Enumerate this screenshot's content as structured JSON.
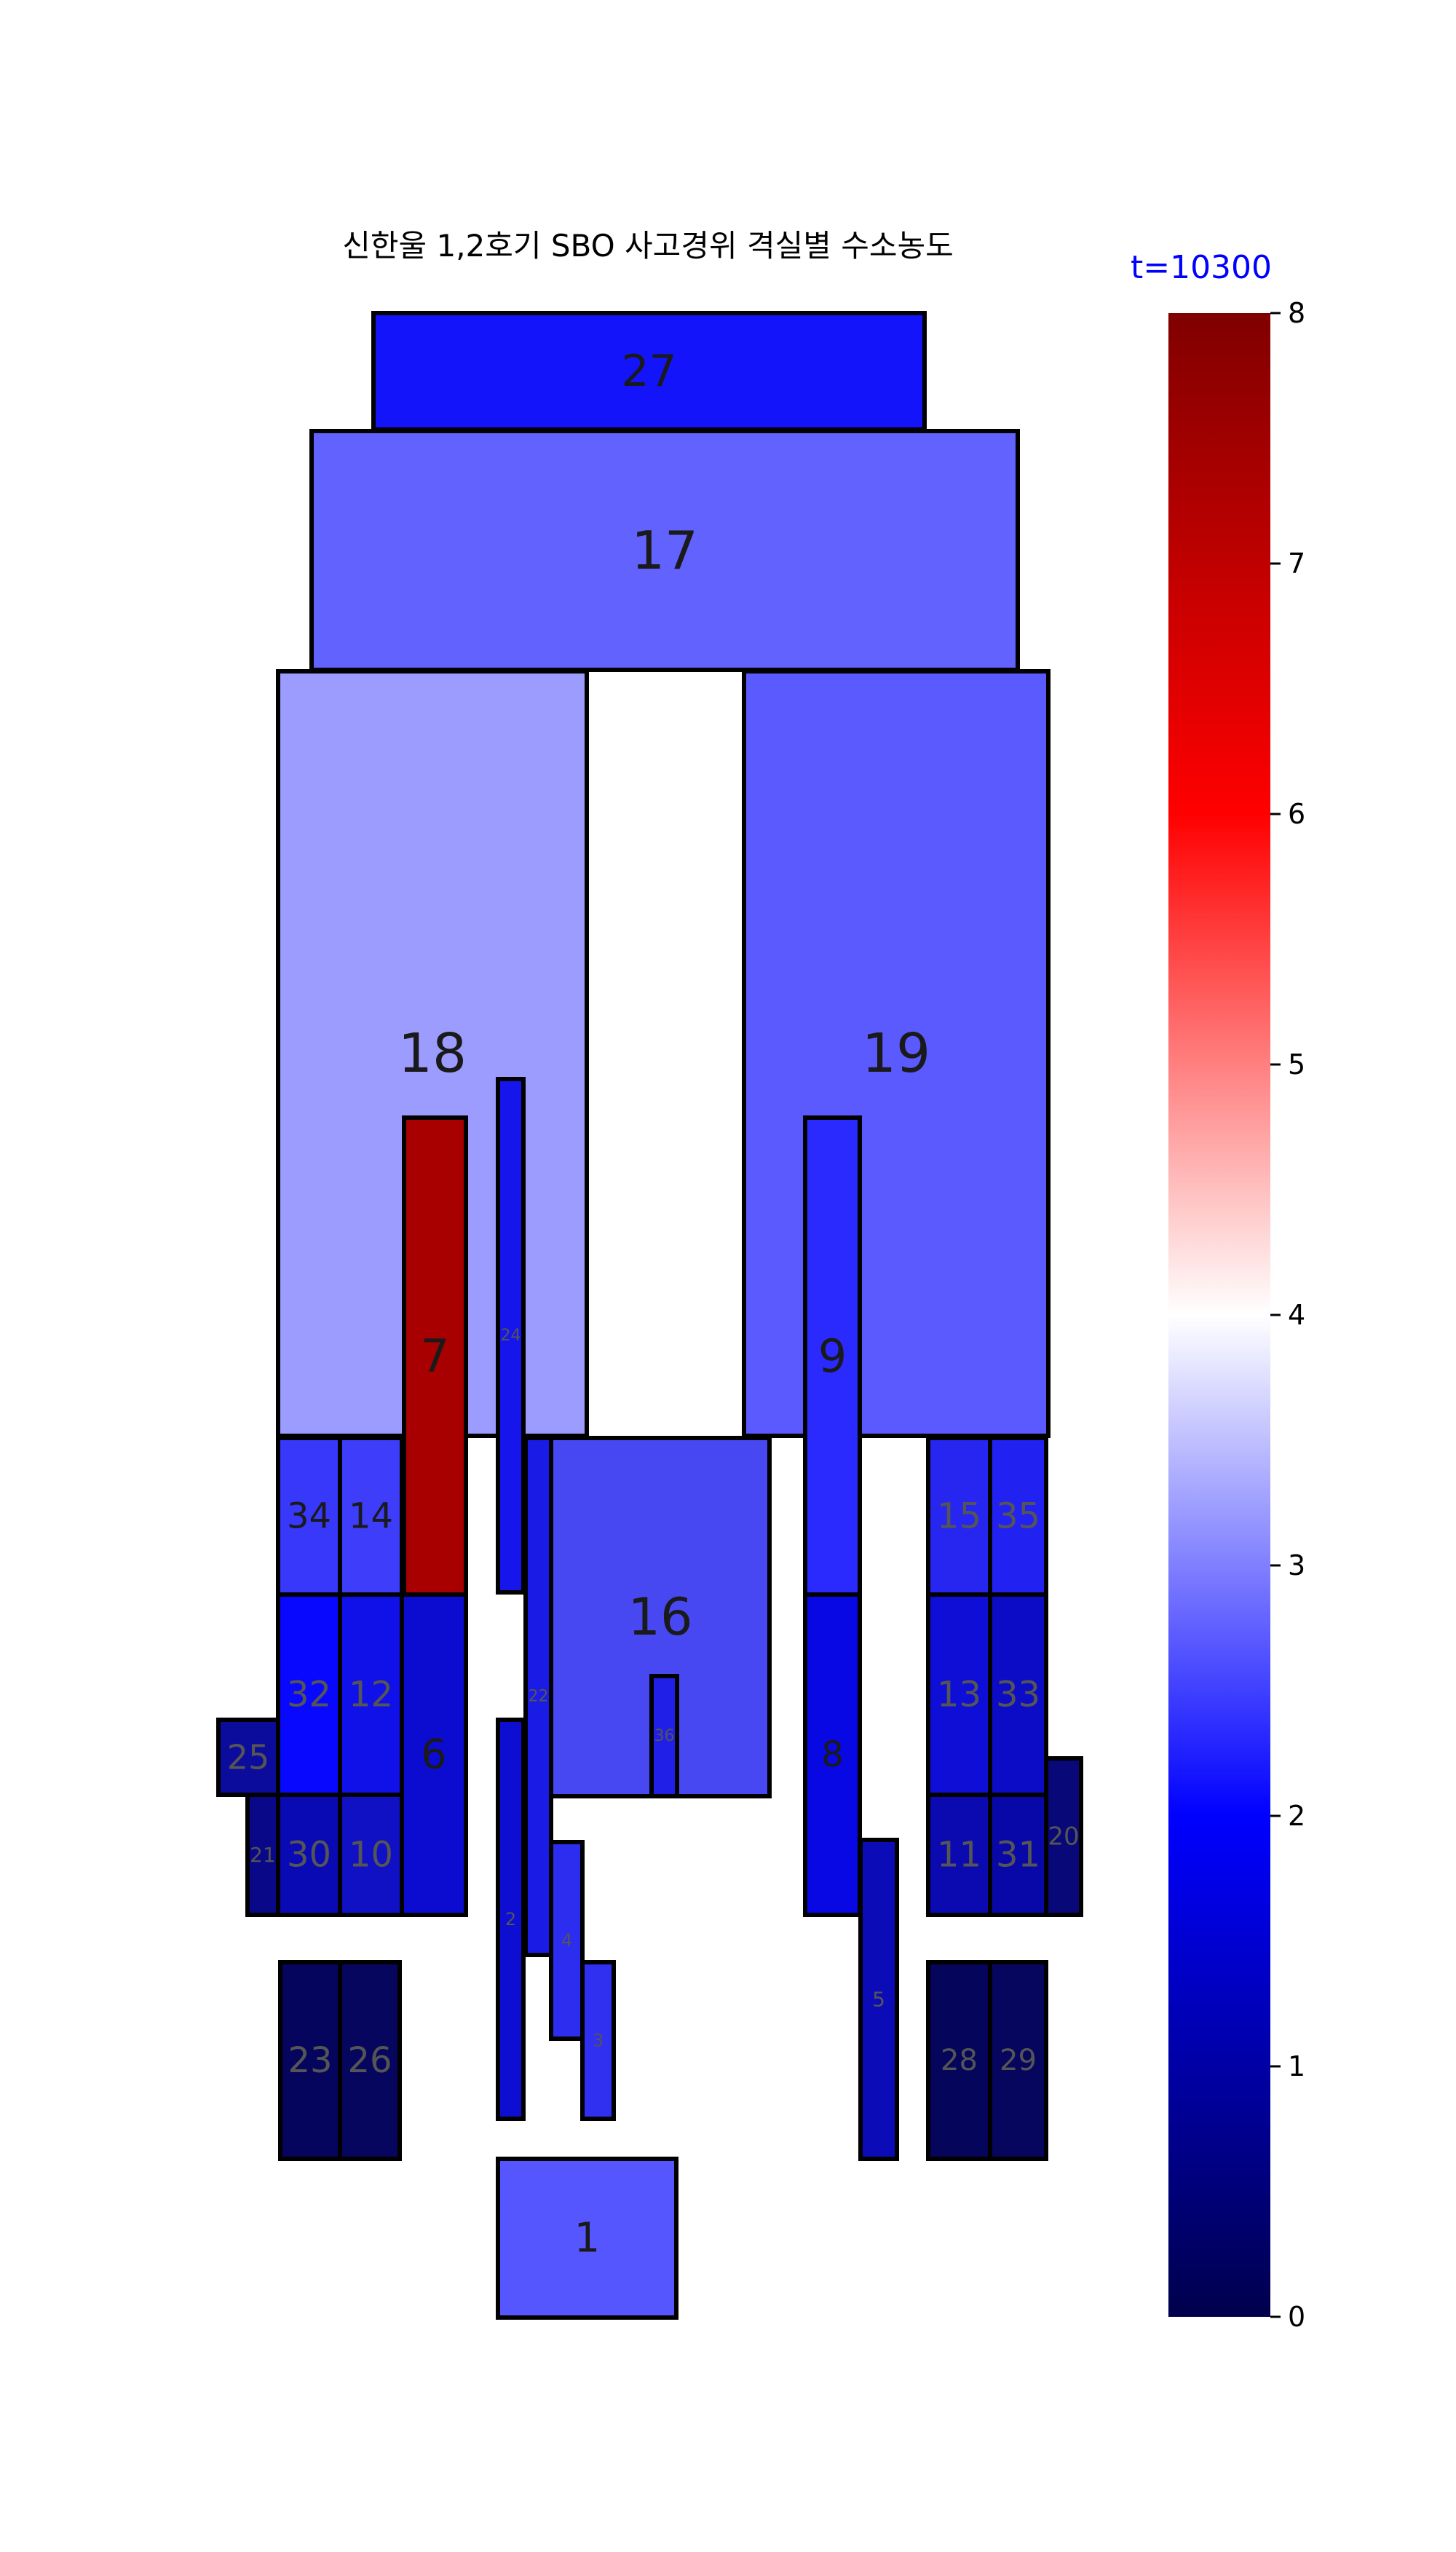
{
  "title": "신한울 1,2호기 SBO 사고경위 격실별 수소농도",
  "time_label": "t=10300",
  "colorbar": {
    "min": 0,
    "max": 8,
    "ticks": [
      "0",
      "1",
      "2",
      "3",
      "4",
      "5",
      "6",
      "7",
      "8"
    ]
  },
  "compartments": [
    {
      "id": "27",
      "label": "27",
      "color": "#1414fa"
    },
    {
      "id": "17",
      "label": "17",
      "color": "#6262ff"
    },
    {
      "id": "18",
      "label": "18",
      "color": "#9c9cff"
    },
    {
      "id": "19",
      "label": "19",
      "color": "#5a5aff"
    },
    {
      "id": "7",
      "label": "7",
      "color": "#a80000"
    },
    {
      "id": "24",
      "label": "24",
      "color": "#1616ec"
    },
    {
      "id": "9",
      "label": "9",
      "color": "#2a2aff"
    },
    {
      "id": "34",
      "label": "34",
      "color": "#3838fa"
    },
    {
      "id": "14",
      "label": "14",
      "color": "#3d3dfa"
    },
    {
      "id": "22",
      "label": "22",
      "color": "#1b1be6"
    },
    {
      "id": "16",
      "label": "16",
      "color": "#4848f2"
    },
    {
      "id": "15",
      "label": "15",
      "color": "#2626f0"
    },
    {
      "id": "35",
      "label": "35",
      "color": "#2121f2"
    },
    {
      "id": "32",
      "label": "32",
      "color": "#0808ff"
    },
    {
      "id": "12",
      "label": "12",
      "color": "#1010e8"
    },
    {
      "id": "6",
      "label": "6",
      "color": "#0c0cd0"
    },
    {
      "id": "36",
      "label": "36",
      "color": "#1f1fe8"
    },
    {
      "id": "8",
      "label": "8",
      "color": "#0808e4"
    },
    {
      "id": "13",
      "label": "13",
      "color": "#0e0ed6"
    },
    {
      "id": "33",
      "label": "33",
      "color": "#0c0cc6"
    },
    {
      "id": "25",
      "label": "25",
      "color": "#0b0b9c"
    },
    {
      "id": "21",
      "label": "21",
      "color": "#080888"
    },
    {
      "id": "30",
      "label": "30",
      "color": "#0a0ab4"
    },
    {
      "id": "10",
      "label": "10",
      "color": "#1010c4"
    },
    {
      "id": "2",
      "label": "2",
      "color": "#0e0ed2"
    },
    {
      "id": "4",
      "label": "4",
      "color": "#2d2df0"
    },
    {
      "id": "3",
      "label": "3",
      "color": "#3030f0"
    },
    {
      "id": "1",
      "label": "1",
      "color": "#5656ff"
    },
    {
      "id": "5",
      "label": "5",
      "color": "#0b0bb8"
    },
    {
      "id": "11",
      "label": "11",
      "color": "#0a0ab0"
    },
    {
      "id": "31",
      "label": "31",
      "color": "#0808a8"
    },
    {
      "id": "20",
      "label": "20",
      "color": "#080878"
    },
    {
      "id": "23",
      "label": "23",
      "color": "#05055e"
    },
    {
      "id": "26",
      "label": "26",
      "color": "#06065e"
    },
    {
      "id": "28",
      "label": "28",
      "color": "#05055c"
    },
    {
      "id": "29",
      "label": "29",
      "color": "#06065e"
    }
  ]
}
